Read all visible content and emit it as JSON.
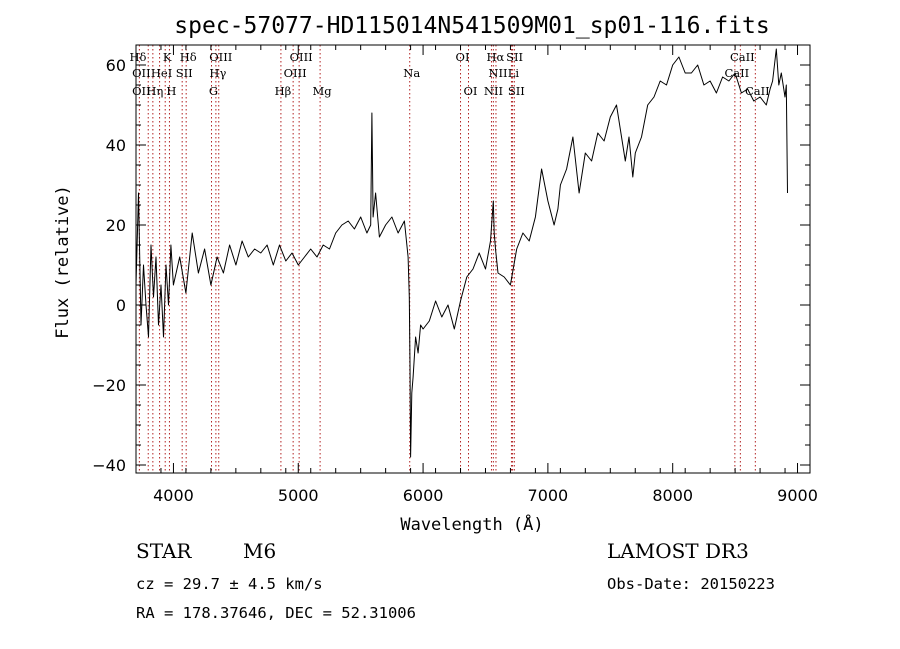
{
  "chart_data": {
    "type": "line",
    "title": "spec-57077-HD115014N541509M01_sp01-116.fits",
    "xlabel": "Wavelength (Å)",
    "ylabel": "Flux (relative)",
    "xlim": [
      3700,
      9100
    ],
    "ylim": [
      -42,
      65
    ],
    "xticks": [
      4000,
      5000,
      6000,
      7000,
      8000,
      9000
    ],
    "yticks": [
      -40,
      -20,
      0,
      20,
      40,
      60
    ],
    "series": [
      {
        "name": "spectrum",
        "x": [
          3700,
          3720,
          3740,
          3760,
          3780,
          3800,
          3820,
          3840,
          3860,
          3880,
          3900,
          3920,
          3940,
          3960,
          3980,
          4000,
          4050,
          4100,
          4150,
          4200,
          4250,
          4300,
          4350,
          4400,
          4450,
          4500,
          4550,
          4600,
          4650,
          4700,
          4750,
          4800,
          4850,
          4900,
          4950,
          5000,
          5050,
          5100,
          5150,
          5200,
          5250,
          5300,
          5350,
          5400,
          5450,
          5500,
          5550,
          5580,
          5590,
          5600,
          5620,
          5650,
          5700,
          5750,
          5800,
          5850,
          5880,
          5890,
          5895,
          5900,
          5910,
          5920,
          5940,
          5960,
          5980,
          6000,
          6050,
          6100,
          6150,
          6200,
          6250,
          6300,
          6350,
          6400,
          6450,
          6500,
          6540,
          6563,
          6570,
          6580,
          6600,
          6650,
          6700,
          6750,
          6800,
          6850,
          6900,
          6950,
          7000,
          7050,
          7080,
          7100,
          7150,
          7200,
          7250,
          7300,
          7350,
          7400,
          7450,
          7500,
          7550,
          7600,
          7620,
          7650,
          7680,
          7700,
          7750,
          7800,
          7850,
          7900,
          7950,
          8000,
          8050,
          8100,
          8150,
          8200,
          8250,
          8300,
          8350,
          8400,
          8450,
          8500,
          8550,
          8600,
          8650,
          8700,
          8750,
          8780,
          8800,
          8830,
          8850,
          8870,
          8900,
          8910,
          8920
        ],
        "y": [
          5,
          28,
          -5,
          10,
          0,
          -8,
          15,
          2,
          12,
          -5,
          5,
          -8,
          10,
          0,
          15,
          5,
          12,
          3,
          18,
          8,
          14,
          5,
          12,
          8,
          15,
          10,
          16,
          12,
          14,
          13,
          15,
          10,
          15,
          11,
          13,
          10,
          12,
          14,
          12,
          15,
          14,
          18,
          20,
          21,
          19,
          22,
          18,
          20,
          48,
          22,
          28,
          17,
          20,
          22,
          18,
          21,
          12,
          2,
          -15,
          -38,
          -22,
          -18,
          -8,
          -12,
          -5,
          -6,
          -4,
          1,
          -3,
          0,
          -6,
          1,
          7,
          9,
          13,
          9,
          16,
          26,
          18,
          14,
          8,
          7,
          5,
          14,
          18,
          16,
          22,
          34,
          26,
          20,
          24,
          30,
          34,
          42,
          28,
          38,
          36,
          43,
          41,
          47,
          50,
          40,
          36,
          42,
          32,
          38,
          42,
          50,
          52,
          56,
          55,
          60,
          62,
          58,
          58,
          60,
          55,
          56,
          53,
          57,
          56,
          58,
          53,
          54,
          51,
          52,
          50,
          54,
          56,
          64,
          55,
          58,
          52,
          55,
          28
        ]
      }
    ],
    "line_labels": [
      {
        "name": "Hδ",
        "wave": 3700,
        "row": 1
      },
      {
        "name": "K",
        "wave": 3934,
        "row": 1
      },
      {
        "name": "Hδ",
        "wave": 4102,
        "row": 1
      },
      {
        "name": "OIII",
        "wave": 4363,
        "row": 1
      },
      {
        "name": "OIII",
        "wave": 5007,
        "row": 1
      },
      {
        "name": "OI",
        "wave": 6300,
        "row": 1
      },
      {
        "name": "Hα",
        "wave": 6563,
        "row": 1
      },
      {
        "name": "SII",
        "wave": 6717,
        "row": 1
      },
      {
        "name": "CaII",
        "wave": 8542,
        "row": 1
      },
      {
        "name": "OII",
        "wave": 3727,
        "row": 2
      },
      {
        "name": "HeI",
        "wave": 3889,
        "row": 2
      },
      {
        "name": "SII",
        "wave": 4070,
        "row": 2
      },
      {
        "name": "Hγ",
        "wave": 4340,
        "row": 2
      },
      {
        "name": "OIII",
        "wave": 4959,
        "row": 2
      },
      {
        "name": "Na",
        "wave": 5893,
        "row": 2
      },
      {
        "name": "NII",
        "wave": 6584,
        "row": 2
      },
      {
        "name": "Li",
        "wave": 6708,
        "row": 2
      },
      {
        "name": "CaII",
        "wave": 8498,
        "row": 2
      },
      {
        "name": "OII",
        "wave": 3727,
        "row": 3
      },
      {
        "name": "Hη",
        "wave": 3835,
        "row": 3
      },
      {
        "name": "H",
        "wave": 3968,
        "row": 3
      },
      {
        "name": "G",
        "wave": 4305,
        "row": 3
      },
      {
        "name": "Hβ",
        "wave": 4861,
        "row": 3
      },
      {
        "name": "Mg",
        "wave": 5175,
        "row": 3
      },
      {
        "name": "OI",
        "wave": 6364,
        "row": 3
      },
      {
        "name": "NII",
        "wave": 6548,
        "row": 3
      },
      {
        "name": "SII",
        "wave": 6731,
        "row": 3
      },
      {
        "name": "CaII",
        "wave": 8662,
        "row": 3
      }
    ],
    "line_marks": [
      3727,
      3798,
      3835,
      3889,
      3934,
      3968,
      4070,
      4102,
      4305,
      4340,
      4363,
      4861,
      4959,
      5007,
      5175,
      5893,
      6300,
      6364,
      6548,
      6563,
      6584,
      6708,
      6717,
      6731,
      8498,
      8542,
      8662
    ]
  },
  "info": {
    "object_class": "STAR",
    "subclass": "M6",
    "redshift": "cz = 29.7 ± 4.5 km/s",
    "coords": "RA = 178.37646, DEC =  52.31006",
    "survey": "LAMOST DR3",
    "obs_date": "Obs-Date: 20150223"
  }
}
